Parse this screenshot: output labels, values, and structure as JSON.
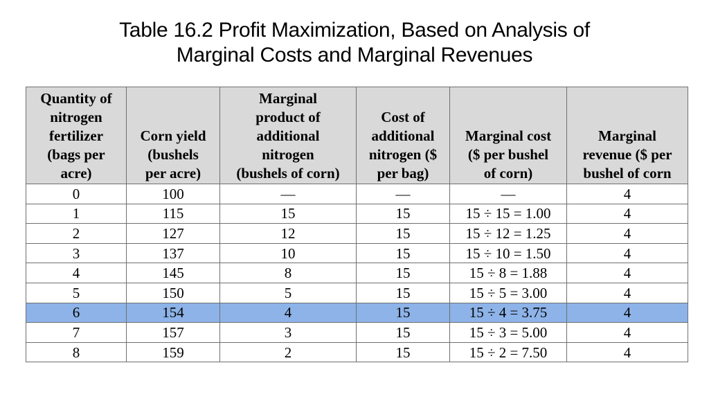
{
  "title": {
    "line1": "Table 16.2 Profit Maximization, Based on Analysis of",
    "line2": "Marginal Costs and Marginal Revenues"
  },
  "table": {
    "headers": [
      "Quantity of\nnitrogen\nfertilizer\n(bags per\nacre)",
      "Corn yield\n(bushels\nper acre)",
      "Marginal\nproduct of\nadditional\nnitrogen\n(bushels of corn)",
      "Cost of\nadditional\nnitrogen ($\nper bag)",
      "Marginal cost\n($ per bushel\nof corn)",
      "Marginal\nrevenue ($ per\nbushel of corn"
    ],
    "highlight_row": 6,
    "rows": [
      [
        "0",
        "100",
        "—",
        "—",
        "—",
        "4"
      ],
      [
        "1",
        "115",
        "15",
        "15",
        "15 ÷ 15 = 1.00",
        "4"
      ],
      [
        "2",
        "127",
        "12",
        "15",
        "15 ÷ 12 = 1.25",
        "4"
      ],
      [
        "3",
        "137",
        "10",
        "15",
        "15 ÷ 10 = 1.50",
        "4"
      ],
      [
        "4",
        "145",
        "8",
        "15",
        "15 ÷ 8 = 1.88",
        "4"
      ],
      [
        "5",
        "150",
        "5",
        "15",
        "15 ÷ 5 = 3.00",
        "4"
      ],
      [
        "6",
        "154",
        "4",
        "15",
        "15 ÷ 4 = 3.75",
        "4"
      ],
      [
        "7",
        "157",
        "3",
        "15",
        "15 ÷ 3 = 5.00",
        "4"
      ],
      [
        "8",
        "159",
        "2",
        "15",
        "15 ÷ 2 = 7.50",
        "4"
      ]
    ]
  }
}
